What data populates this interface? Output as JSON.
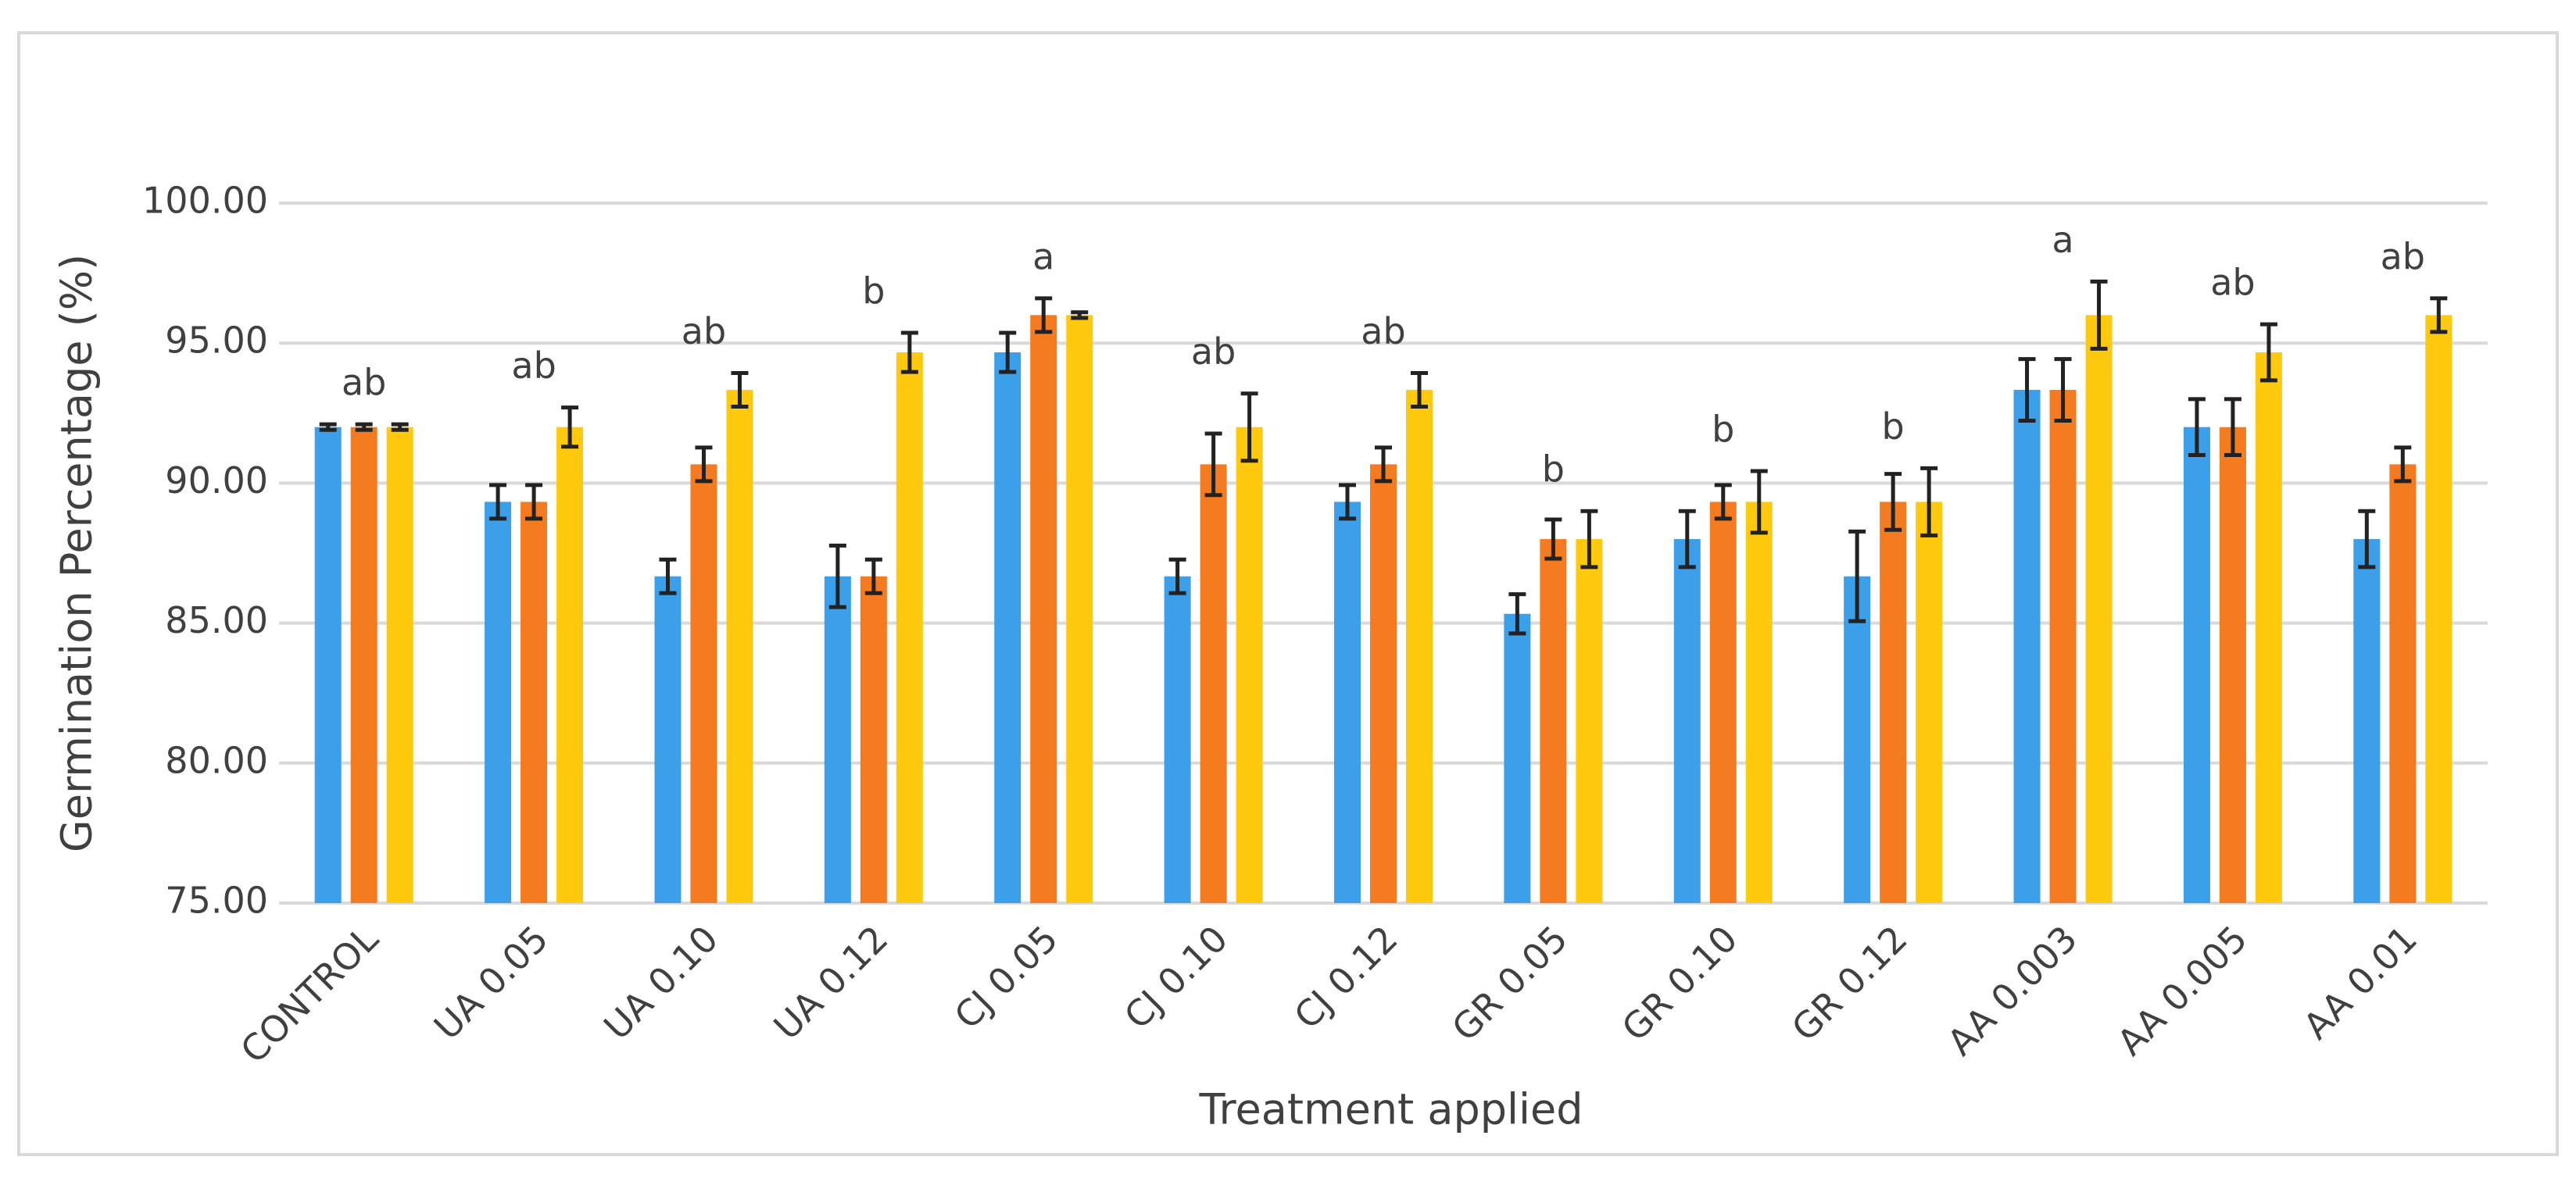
{
  "chart_data": {
    "type": "bar",
    "x_label": "Treatment applied",
    "y_label": "Germination Percentage (%)",
    "categories": [
      "CONTROL",
      "UA 0.05",
      "UA 0.10",
      "UA 0.12",
      "CJ 0.05",
      "CJ 0.10",
      "CJ 0.12",
      "GR 0.05",
      "GR 0.10",
      "GR 0.12",
      "AA 0.003",
      "AA 0.005",
      "AA 0.01"
    ],
    "series": [
      {
        "color": "#3b9fe9",
        "values": [
          92,
          89.33,
          86.67,
          86.67,
          94.67,
          86.67,
          89.33,
          85.33,
          88,
          86.67,
          93.33,
          92,
          88
        ],
        "errors": [
          0.1,
          0.6,
          0.6,
          1.1,
          0.7,
          0.6,
          0.6,
          0.7,
          1.0,
          1.6,
          1.1,
          1.0,
          1.0
        ]
      },
      {
        "color": "#f47b20",
        "values": [
          92,
          89.33,
          90.67,
          86.67,
          96,
          90.67,
          90.67,
          88,
          89.33,
          89.33,
          93.33,
          92,
          90.67
        ],
        "errors": [
          0.1,
          0.6,
          0.6,
          0.6,
          0.6,
          1.1,
          0.6,
          0.7,
          0.6,
          1.0,
          1.1,
          1.0,
          0.6
        ]
      },
      {
        "color": "#ffc90e",
        "values": [
          92,
          92,
          93.33,
          94.67,
          96,
          92,
          93.33,
          88,
          89.33,
          89.33,
          96,
          94.67,
          96
        ],
        "errors": [
          0.1,
          0.7,
          0.6,
          0.7,
          0.1,
          1.2,
          0.6,
          1.0,
          1.1,
          1.2,
          1.2,
          1.0,
          0.6
        ]
      }
    ],
    "group_labels": [
      "ab",
      "ab",
      "ab",
      "b",
      "a",
      "ab",
      "ab",
      "b",
      "b",
      "b",
      "a",
      "ab",
      "ab"
    ],
    "ylim": [
      75,
      100
    ],
    "yticks": [
      {
        "value": 75,
        "label": "75.00"
      },
      {
        "value": 80,
        "label": "80.00"
      },
      {
        "value": 85,
        "label": "85.00"
      },
      {
        "value": 90,
        "label": "90.00"
      },
      {
        "value": 95,
        "label": "95.00"
      },
      {
        "value": 100,
        "label": "100.00"
      }
    ],
    "grid": true
  }
}
